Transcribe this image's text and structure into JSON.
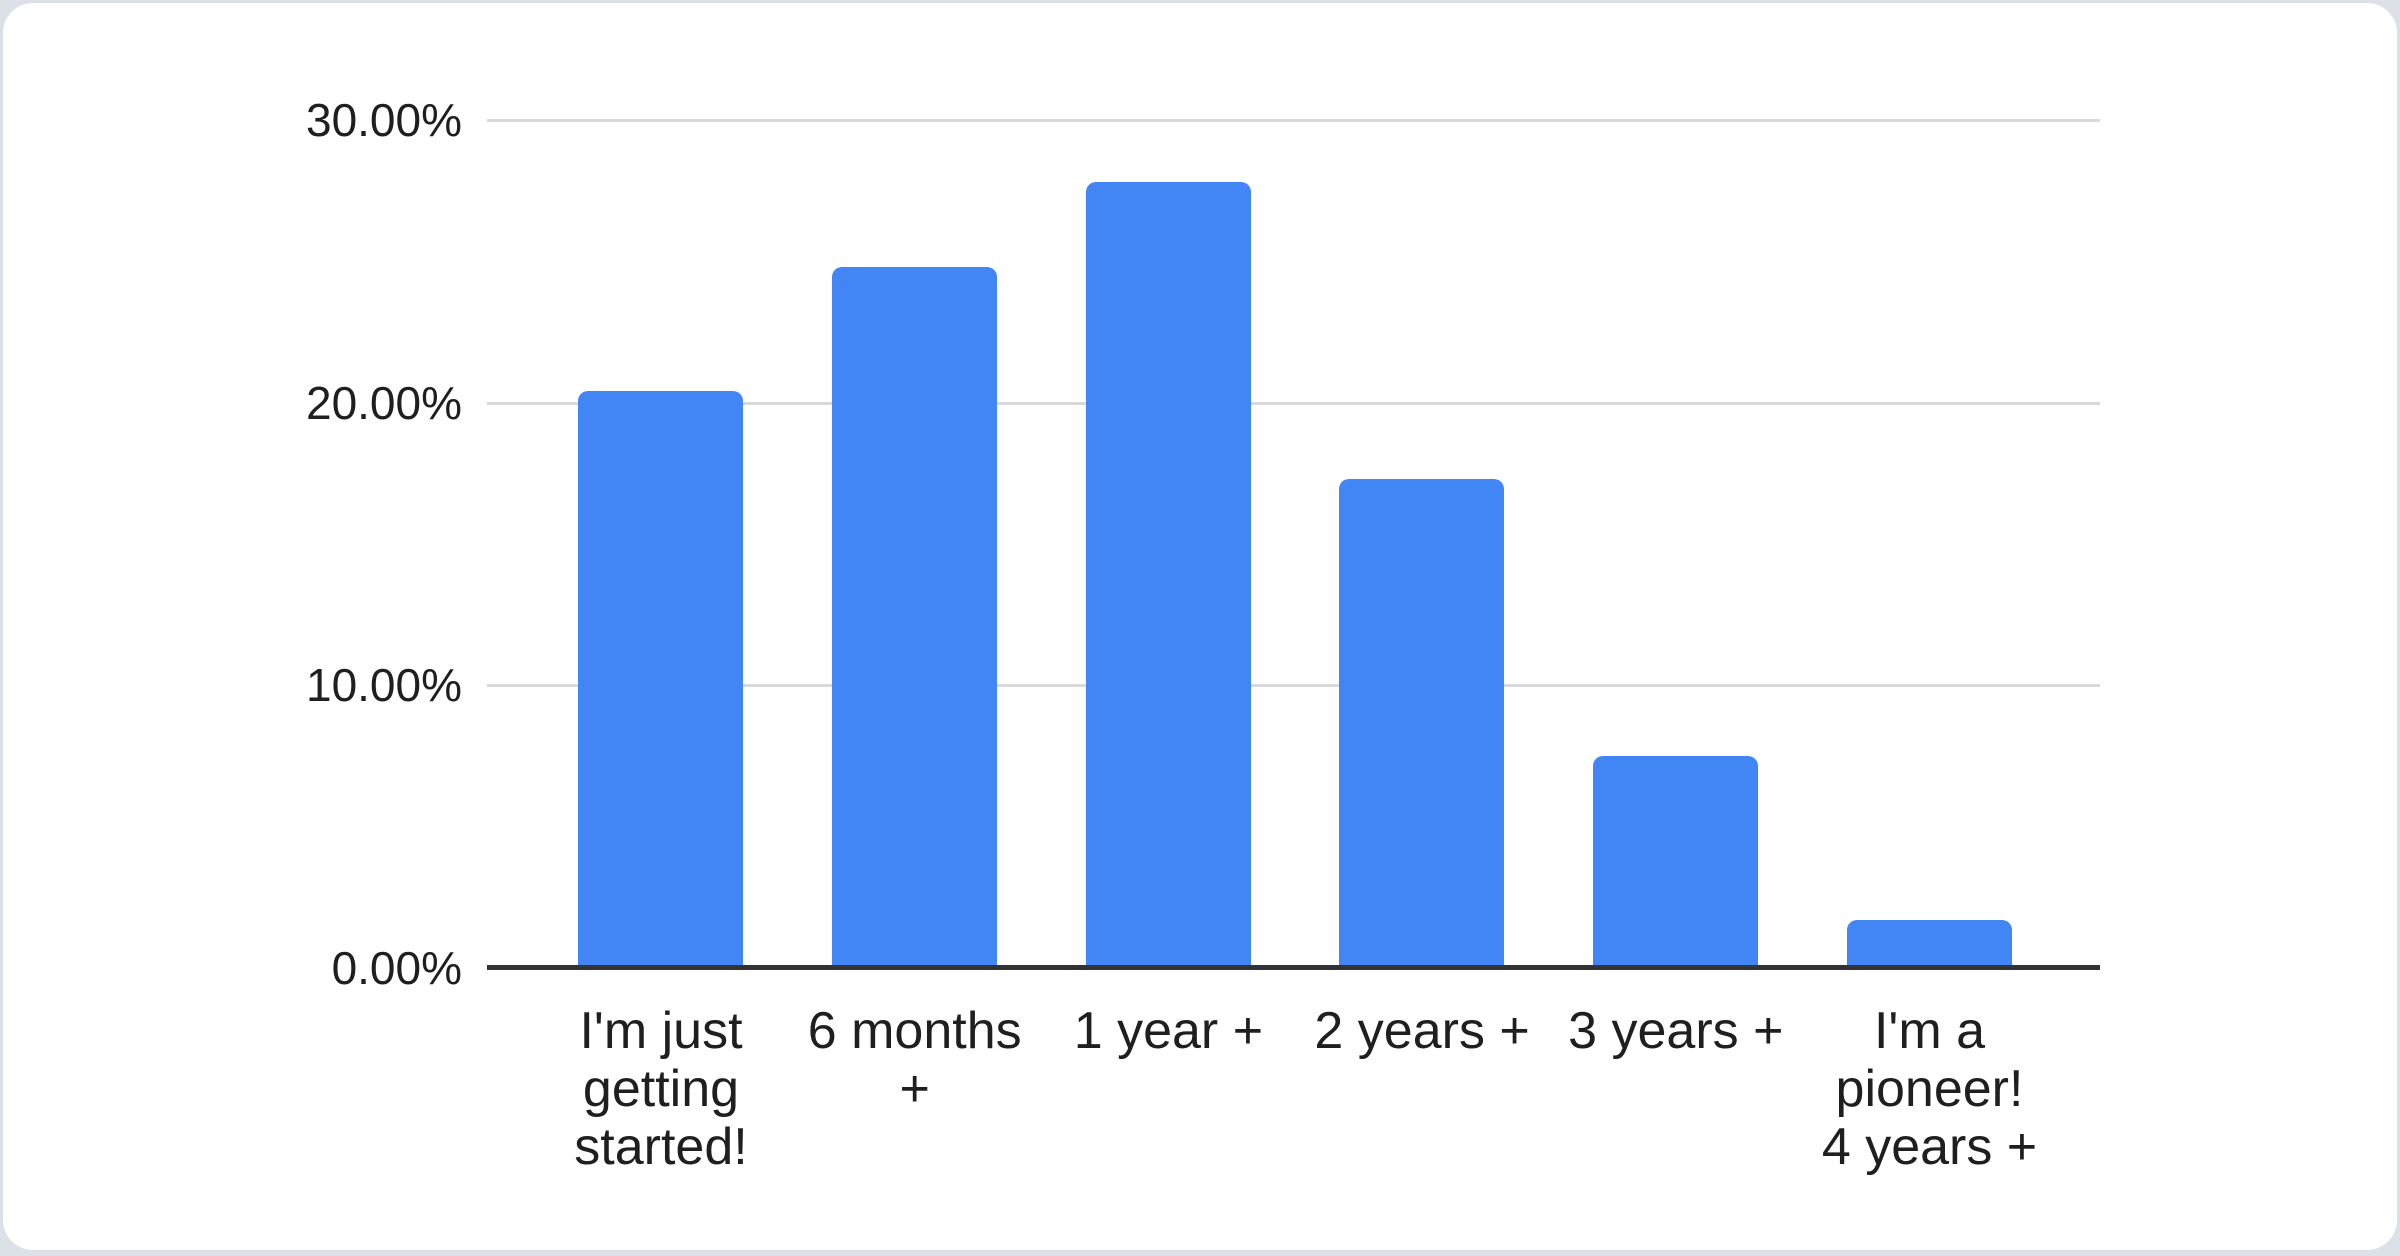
{
  "page": {
    "background_edge_color": "#dbe1e6",
    "card_background": "#ffffff"
  },
  "chart_data": {
    "type": "bar",
    "title": "",
    "xlabel": "",
    "ylabel": "",
    "categories": [
      "I'm just getting started!",
      "6 months +",
      "1 year +",
      "2 years +",
      "3 years +",
      "I'm a pioneer! 4 years +"
    ],
    "values": [
      20.4,
      24.8,
      27.8,
      17.3,
      7.5,
      1.7
    ],
    "value_unit": "percent",
    "ylim": [
      0,
      30
    ],
    "grid": "horizontal",
    "legend_position": "none",
    "yticks": [
      {
        "value": 30,
        "label": "30.00%"
      },
      {
        "value": 20,
        "label": "20.00%"
      },
      {
        "value": 10,
        "label": "10.00%"
      },
      {
        "value": 0,
        "label": "0.00%"
      }
    ],
    "xtick_labels_wrapped": [
      "I'm just\ngetting\nstarted!",
      "6 months\n+",
      "1 year +",
      "2 years +",
      "3 years +",
      "I'm a\npioneer!\n4 years +"
    ],
    "bar_color": "#4285f4",
    "gridline_color": "#d9d9d9",
    "axis_line_color": "#333333",
    "tick_text_color": "#1f1f1f"
  }
}
